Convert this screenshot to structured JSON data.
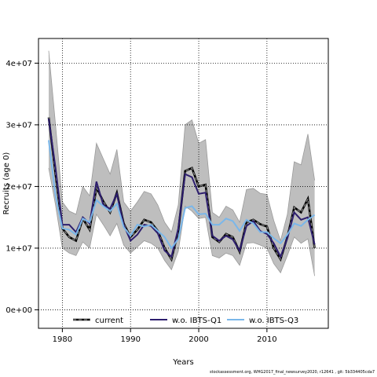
{
  "chart_data": {
    "type": "line",
    "title": "",
    "xlabel": "Years",
    "ylabel": "Recruits (age 0)",
    "xlim": [
      1976.5,
      2019
    ],
    "ylim": [
      -3000000,
      44000000
    ],
    "x_ticks": [
      1980,
      1990,
      2000,
      2010
    ],
    "x_tick_labels": [
      "1980",
      "1990",
      "2000",
      "2010"
    ],
    "y_ticks": [
      0,
      10000000,
      20000000,
      30000000,
      40000000
    ],
    "y_tick_labels": [
      "0e+00",
      "1e+07",
      "2e+07",
      "3e+07",
      "4e+07"
    ],
    "grid": true,
    "legend_position": "bottom",
    "x": [
      1978,
      1979,
      1980,
      1981,
      1982,
      1983,
      1984,
      1985,
      1986,
      1987,
      1988,
      1989,
      1990,
      1991,
      1992,
      1993,
      1994,
      1995,
      1996,
      1997,
      1998,
      1999,
      2000,
      2001,
      2002,
      2003,
      2004,
      2005,
      2006,
      2007,
      2008,
      2009,
      2010,
      2011,
      2012,
      2013,
      2014,
      2015,
      2016,
      2017
    ],
    "band": {
      "upper": [
        42000000,
        30000000,
        17500000,
        16000000,
        15500000,
        20000000,
        18500000,
        27000000,
        24500000,
        22000000,
        26000000,
        17500000,
        16000000,
        17500000,
        19200000,
        18800000,
        17000000,
        14200000,
        12600000,
        17000000,
        30000000,
        30800000,
        27000000,
        27600000,
        15800000,
        15000000,
        16800000,
        16200000,
        14200000,
        19500000,
        19700000,
        18900000,
        18700000,
        14500000,
        11200000,
        15500000,
        24000000,
        23500000,
        28500000,
        21000000
      ],
      "lower": [
        23000000,
        17000000,
        10000000,
        9200000,
        8800000,
        11000000,
        10000000,
        15500000,
        13800000,
        12000000,
        14000000,
        10500000,
        9200000,
        10200000,
        11200000,
        10800000,
        10000000,
        8000000,
        6500000,
        9500000,
        16800000,
        16000000,
        14800000,
        15000000,
        8800000,
        8400000,
        9200000,
        8800000,
        7200000,
        10800000,
        10900000,
        10500000,
        10000000,
        7500000,
        6000000,
        8800000,
        11800000,
        10800000,
        11500000,
        5500000
      ]
    },
    "series": [
      {
        "name": "current",
        "color": "#000000",
        "style": "dashed-black-on-grey",
        "values": [
          31200000,
          22000000,
          13200000,
          11800000,
          11200000,
          14800000,
          13000000,
          19800000,
          17600000,
          15800000,
          19000000,
          14000000,
          11800000,
          13000000,
          14600000,
          14200000,
          12800000,
          10000000,
          8200000,
          12800000,
          22500000,
          23000000,
          20000000,
          20300000,
          11800000,
          11000000,
          12300000,
          11800000,
          9400000,
          14200000,
          14600000,
          13900000,
          13500000,
          10000000,
          8200000,
          11800000,
          16600000,
          15800000,
          18000000,
          10000000
        ]
      },
      {
        "name": "w.o. IBTS-Q1",
        "color": "#2d1e6e",
        "style": "solid",
        "values": [
          31000000,
          23000000,
          13800000,
          13800000,
          12600000,
          15000000,
          14000000,
          20800000,
          17000000,
          16400000,
          18800000,
          13800000,
          11200000,
          12200000,
          13800000,
          13600000,
          12400000,
          9600000,
          8600000,
          13200000,
          22000000,
          21500000,
          18800000,
          19000000,
          12000000,
          11200000,
          12000000,
          11400000,
          9600000,
          13600000,
          14400000,
          12800000,
          12300000,
          10800000,
          8600000,
          11600000,
          15800000,
          14600000,
          15000000,
          10600000
        ]
      },
      {
        "name": "w.o. IBTS-Q3",
        "color": "#7ab7ea",
        "style": "solid",
        "values": [
          27500000,
          18500000,
          13200000,
          13000000,
          12200000,
          14800000,
          14200000,
          17800000,
          16800000,
          16000000,
          17200000,
          13400000,
          12000000,
          13800000,
          13500000,
          13800000,
          12800000,
          11800000,
          10000000,
          11500000,
          16500000,
          16800000,
          15500000,
          15600000,
          13800000,
          13800000,
          14800000,
          14400000,
          12800000,
          14600000,
          14000000,
          12600000,
          12600000,
          11600000,
          10800000,
          12200000,
          14000000,
          13600000,
          14600000,
          15400000
        ]
      }
    ]
  },
  "footer": "stockassessment.org, WHG2017_final_newsurvey2020, r12641 , git: 5b334405cda7"
}
